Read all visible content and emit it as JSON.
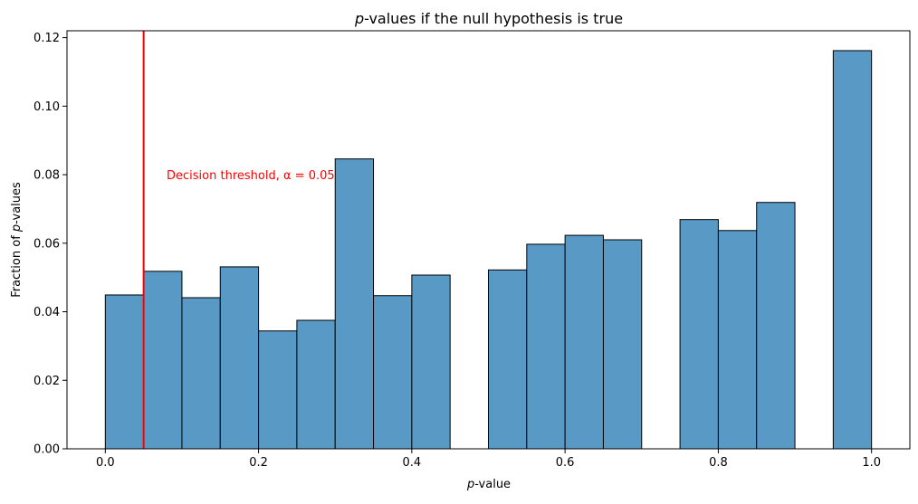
{
  "chart_data": {
    "type": "bar",
    "title": "p-values if the null hypothesis is true",
    "xlabel": "p-value",
    "ylabel": "Fraction of p-values",
    "xlim": [
      -0.05,
      1.05
    ],
    "ylim": [
      0,
      0.122
    ],
    "bin_width": 0.05,
    "bin_starts": [
      0.0,
      0.05,
      0.1,
      0.15,
      0.2,
      0.25,
      0.3,
      0.35,
      0.4,
      0.45,
      0.5,
      0.55,
      0.6,
      0.65,
      0.7,
      0.75,
      0.8,
      0.85,
      0.9,
      0.95
    ],
    "values": [
      0.0449,
      0.0518,
      0.0441,
      0.0531,
      0.0344,
      0.0375,
      0.0846,
      0.0447,
      0.0507,
      0.0,
      0.0522,
      0.0597,
      0.0623,
      0.061,
      0.0,
      0.0669,
      0.0637,
      0.0719,
      0.0,
      0.1162
    ],
    "x_ticks": [
      "0.0",
      "0.2",
      "0.4",
      "0.6",
      "0.8",
      "1.0"
    ],
    "x_tick_values": [
      0.0,
      0.2,
      0.4,
      0.6,
      0.8,
      1.0
    ],
    "y_ticks": [
      "0.00",
      "0.02",
      "0.04",
      "0.06",
      "0.08",
      "0.10",
      "0.12"
    ],
    "y_tick_values": [
      0.0,
      0.02,
      0.04,
      0.06,
      0.08,
      0.1,
      0.12
    ],
    "bar_color": "#5899c6",
    "bar_edge_color": "#000000",
    "threshold": {
      "x": 0.05,
      "color": "#ff0000",
      "label": "Decision threshold, α = 0.05",
      "label_x": 0.08,
      "label_y": 0.08
    }
  }
}
